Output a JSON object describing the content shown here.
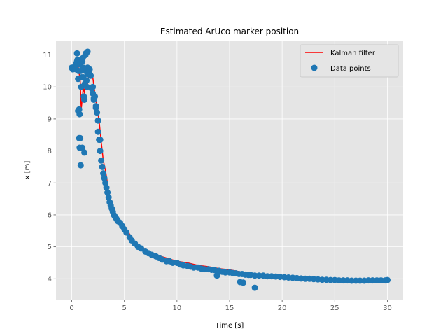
{
  "chart_data": {
    "type": "scatter",
    "title": "Estimated ArUco marker position",
    "xlabel": "Time [s]",
    "ylabel": "x [m]",
    "xlim": [
      -1.5,
      31.5
    ],
    "ylim": [
      3.35,
      11.45
    ],
    "xticks": [
      0,
      5,
      10,
      15,
      20,
      25,
      30
    ],
    "yticks": [
      4,
      5,
      6,
      7,
      8,
      9,
      10,
      11
    ],
    "grid": true,
    "legend_position": "top-right",
    "colors": {
      "plot_bg": "#e5e5e5",
      "grid": "#ffffff",
      "points": "#1f77b4",
      "line": "#ff0000"
    },
    "series": [
      {
        "name": "Kalman filter",
        "kind": "line",
        "x": [
          0.5,
          0.6,
          0.8,
          0.9,
          1.1,
          1.2,
          1.3,
          1.5,
          1.7,
          1.9,
          2.0,
          2.2,
          2.4,
          2.6,
          2.8,
          3.0,
          3.2,
          3.4,
          3.6,
          3.8,
          4.0,
          4.3,
          4.6,
          5.0,
          5.5,
          6.0,
          7.0,
          8.0,
          9.0,
          10.0,
          11.0,
          12.0,
          13.0,
          14.0,
          15.0,
          16.0,
          16.2,
          17.0,
          18.0,
          19.0,
          20.0,
          21.0,
          22.0,
          23.0,
          24.0,
          25.0,
          26.0,
          27.0,
          28.0,
          29.0,
          30.0
        ],
        "y": [
          10.6,
          10.65,
          10.2,
          9.3,
          10.0,
          9.8,
          10.2,
          10.1,
          10.5,
          10.45,
          10.3,
          9.8,
          9.35,
          8.95,
          8.3,
          7.7,
          7.4,
          7.0,
          6.4,
          6.2,
          6.0,
          5.9,
          5.8,
          5.65,
          5.4,
          5.15,
          4.9,
          4.75,
          4.65,
          4.55,
          4.5,
          4.42,
          4.38,
          4.32,
          4.28,
          4.22,
          4.1,
          4.15,
          4.12,
          4.1,
          4.1,
          4.08,
          4.06,
          4.02,
          3.98,
          3.97,
          3.96,
          3.95,
          3.95,
          3.95,
          3.96
        ]
      },
      {
        "name": "Data points",
        "kind": "scatter",
        "x": [
          0.0,
          0.1,
          0.2,
          0.3,
          0.4,
          0.45,
          0.5,
          0.55,
          0.6,
          0.65,
          0.7,
          0.75,
          0.8,
          0.85,
          0.9,
          0.95,
          1.0,
          1.05,
          1.1,
          1.15,
          1.2,
          1.25,
          1.3,
          1.35,
          1.4,
          1.45,
          1.5,
          1.55,
          1.6,
          1.7,
          1.8,
          1.9,
          2.0,
          2.1,
          2.2,
          2.3,
          2.4,
          2.5,
          2.6,
          2.7,
          2.8,
          2.9,
          3.0,
          3.1,
          3.2,
          3.3,
          3.4,
          3.5,
          3.6,
          3.7,
          3.8,
          3.9,
          4.0,
          4.1,
          4.2,
          4.3,
          4.4,
          4.6,
          4.8,
          5.0,
          5.2,
          5.5,
          5.7,
          6.0,
          6.3,
          6.6,
          7.0,
          7.3,
          7.6,
          8.0,
          8.3,
          8.6,
          9.0,
          9.3,
          9.6,
          10.0,
          10.3,
          10.6,
          11.0,
          11.3,
          11.6,
          12.0,
          12.3,
          12.6,
          13.0,
          13.3,
          13.6,
          13.8,
          14.0,
          14.3,
          14.6,
          15.0,
          15.3,
          15.6,
          15.9,
          16.2,
          16.5,
          16.8,
          17.0,
          17.4,
          17.8,
          18.2,
          18.6,
          19.0,
          19.4,
          19.8,
          20.2,
          20.6,
          21.0,
          21.4,
          21.8,
          22.2,
          22.6,
          23.0,
          23.4,
          23.8,
          24.2,
          24.6,
          25.0,
          25.4,
          25.8,
          26.2,
          26.6,
          27.0,
          27.4,
          27.8,
          28.2,
          28.6,
          29.0,
          29.4,
          29.8,
          30.0,
          0.5,
          0.7,
          0.75,
          0.85,
          1.2,
          1.3,
          1.5,
          0.6,
          0.8,
          1.0,
          1.6,
          2.0,
          2.1,
          2.3,
          2.5,
          2.7,
          13.8,
          16.0,
          16.3,
          17.4,
          0.4,
          1.1
        ],
        "y": [
          10.6,
          10.55,
          10.6,
          10.65,
          10.7,
          10.75,
          10.8,
          10.85,
          10.25,
          10.5,
          9.3,
          9.15,
          10.7,
          10.5,
          10.0,
          10.3,
          10.8,
          10.9,
          10.3,
          9.7,
          9.6,
          10.1,
          10.5,
          11.05,
          10.2,
          10.0,
          10.6,
          10.4,
          10.45,
          10.55,
          10.35,
          9.95,
          9.8,
          9.6,
          9.7,
          9.35,
          9.2,
          8.6,
          8.35,
          8.0,
          7.7,
          7.5,
          7.3,
          7.15,
          7.0,
          6.85,
          6.7,
          6.55,
          6.4,
          6.3,
          6.2,
          6.1,
          6.0,
          5.95,
          5.9,
          5.85,
          5.8,
          5.75,
          5.65,
          5.55,
          5.45,
          5.3,
          5.2,
          5.1,
          5.0,
          4.95,
          4.85,
          4.8,
          4.75,
          4.7,
          4.65,
          4.6,
          4.55,
          4.55,
          4.5,
          4.5,
          4.45,
          4.42,
          4.4,
          4.38,
          4.35,
          4.35,
          4.32,
          4.3,
          4.3,
          4.28,
          4.27,
          4.1,
          4.25,
          4.22,
          4.2,
          4.2,
          4.18,
          4.17,
          4.15,
          4.15,
          4.13,
          4.12,
          4.12,
          4.1,
          4.1,
          4.1,
          4.08,
          4.08,
          4.07,
          4.06,
          4.05,
          4.04,
          4.03,
          4.02,
          4.01,
          4.0,
          4.0,
          3.99,
          3.98,
          3.97,
          3.97,
          3.96,
          3.96,
          3.95,
          3.95,
          3.95,
          3.94,
          3.94,
          3.94,
          3.94,
          3.95,
          3.95,
          3.95,
          3.95,
          3.95,
          3.96,
          11.05,
          8.4,
          8.1,
          7.55,
          7.95,
          11.0,
          11.1,
          9.25,
          8.4,
          8.1,
          10.4,
          10.0,
          9.65,
          9.4,
          8.95,
          8.35,
          4.1,
          3.9,
          3.88,
          3.72,
          10.55,
          10.6
        ]
      }
    ]
  }
}
